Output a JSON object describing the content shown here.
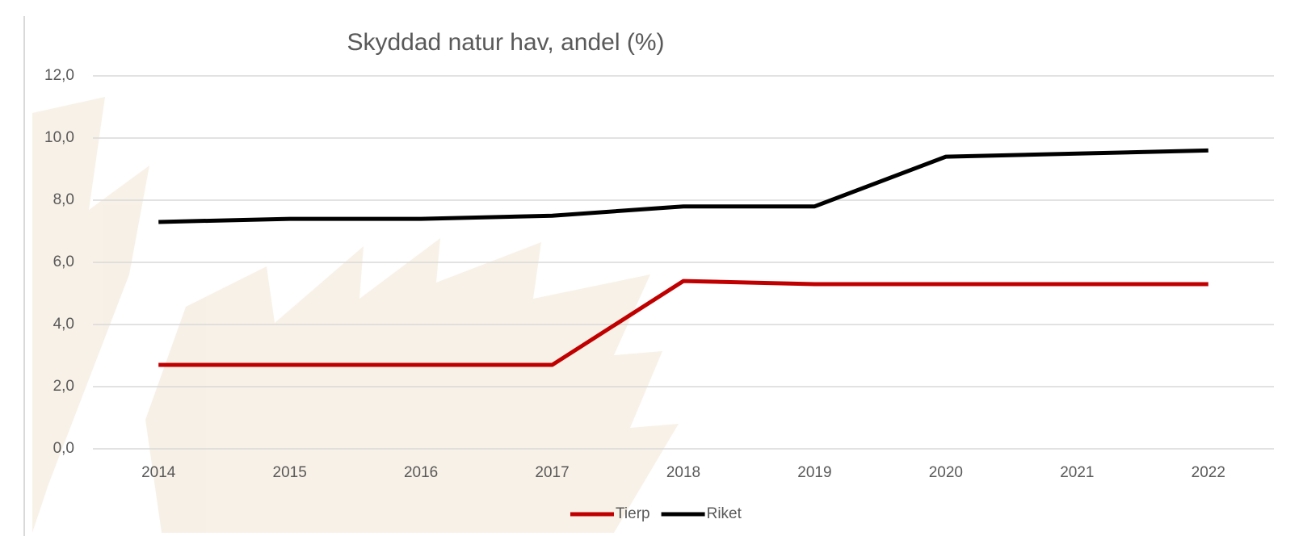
{
  "chart_data": {
    "type": "line",
    "title": "Skyddad natur hav, andel (%)",
    "categories": [
      "2014",
      "2015",
      "2016",
      "2017",
      "2018",
      "2019",
      "2020",
      "2021",
      "2022"
    ],
    "series": [
      {
        "name": "Tierp",
        "color": "#c00000",
        "values": [
          2.7,
          2.7,
          2.7,
          2.7,
          5.4,
          5.3,
          5.3,
          5.3,
          5.3
        ]
      },
      {
        "name": "Riket",
        "color": "#000000",
        "values": [
          7.3,
          7.4,
          7.4,
          7.5,
          7.8,
          7.8,
          9.4,
          9.5,
          9.6
        ]
      }
    ],
    "ylim": [
      0,
      12
    ],
    "yticks": [
      {
        "value": 0,
        "label": "0,0"
      },
      {
        "value": 2,
        "label": "2,0"
      },
      {
        "value": 4,
        "label": "4,0"
      },
      {
        "value": 6,
        "label": "6,0"
      },
      {
        "value": 8,
        "label": "8,0"
      },
      {
        "value": 10,
        "label": "10,0"
      },
      {
        "value": 12,
        "label": "12,0"
      }
    ],
    "grid": true
  }
}
